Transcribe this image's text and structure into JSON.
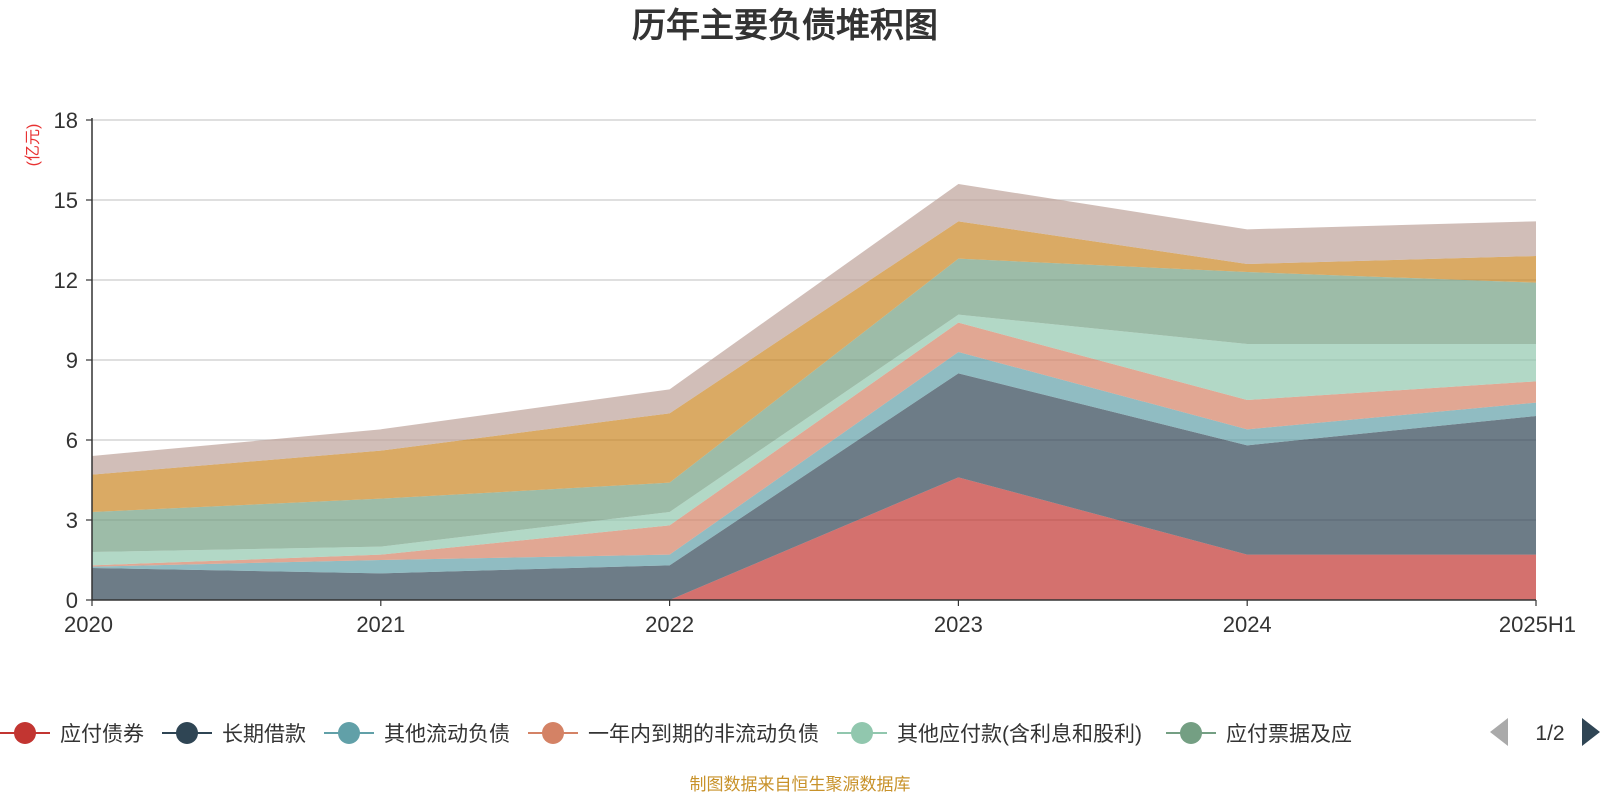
{
  "chart_data": {
    "type": "area",
    "stacked": true,
    "title": "历年主要负债堆积图",
    "unit_label": "(亿元)",
    "categories": [
      "2020",
      "2021",
      "2022",
      "2023",
      "2024",
      "2025H1"
    ],
    "ylim": [
      0,
      18
    ],
    "yticks": [
      0,
      3,
      6,
      9,
      12,
      15,
      18
    ],
    "grid": true,
    "legend_position": "bottom",
    "series": [
      {
        "name": "应付债券",
        "color": "#c23531",
        "values": [
          0,
          0,
          0,
          4.6,
          1.7,
          1.7
        ]
      },
      {
        "name": "长期借款",
        "color": "#2f4554",
        "values": [
          1.2,
          1.0,
          1.3,
          3.9,
          4.1,
          5.2
        ]
      },
      {
        "name": "其他流动负债",
        "color": "#61a0a8",
        "values": [
          0.05,
          0.5,
          0.4,
          0.8,
          0.6,
          0.5
        ]
      },
      {
        "name": "一年内到期的非流动负债",
        "color": "#d48265",
        "values": [
          0.05,
          0.2,
          1.1,
          1.1,
          1.1,
          0.8
        ]
      },
      {
        "name": "其他应付款(含利息和股利)",
        "color": "#91c7ae",
        "values": [
          0.5,
          0.3,
          0.5,
          0.3,
          2.1,
          1.4
        ]
      },
      {
        "name": "应付票据及应付账款",
        "color": "#749f83",
        "values": [
          1.5,
          1.8,
          1.1,
          2.1,
          2.7,
          2.3
        ]
      },
      {
        "name": "",
        "color": "#ca8622",
        "values": [
          1.4,
          1.8,
          2.6,
          1.4,
          0.3,
          1.0
        ]
      },
      {
        "name": "",
        "color": "#bda29a",
        "values": [
          0.7,
          0.8,
          0.9,
          1.4,
          1.3,
          1.3
        ]
      }
    ]
  },
  "legend": {
    "items": [
      {
        "label": "应付债券",
        "color": "#c23531"
      },
      {
        "label": "长期借款",
        "color": "#2f4554"
      },
      {
        "label": "其他流动负债",
        "color": "#61a0a8"
      },
      {
        "label": "一年内到期的非流动负债",
        "color": "#d48265"
      },
      {
        "label": "其他应付款(含利息和股利)",
        "color": "#91c7ae"
      },
      {
        "label": "应付票据及应",
        "color": "#749f83"
      }
    ],
    "page_indicator": "1/2"
  },
  "footer": {
    "source_text": "制图数据来自恒生聚源数据库"
  }
}
